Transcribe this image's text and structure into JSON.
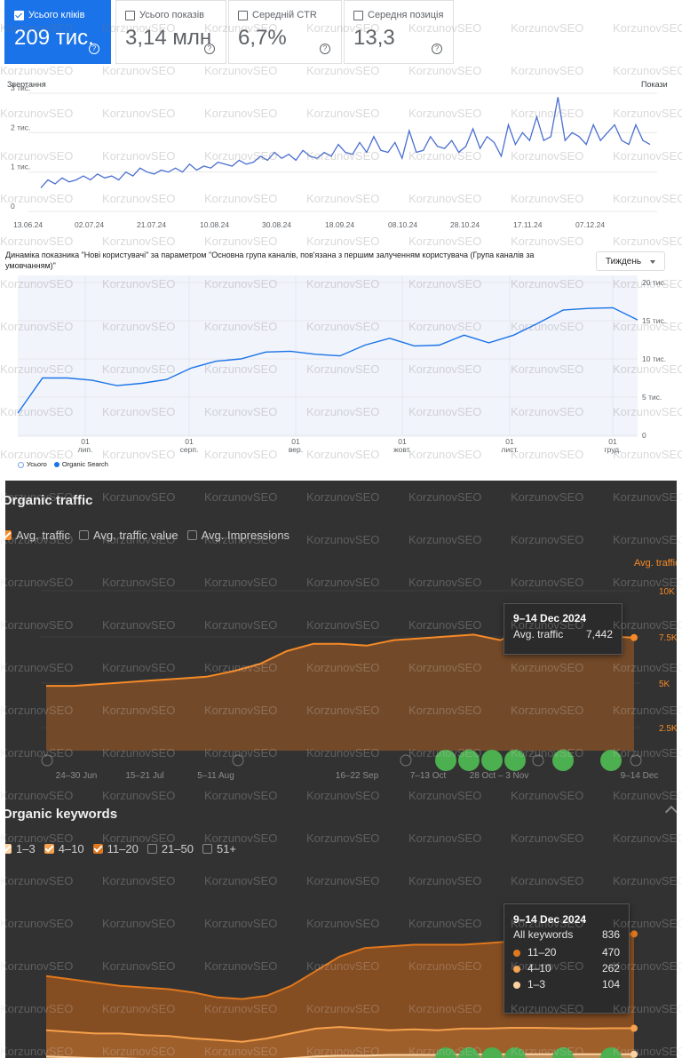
{
  "gsc": {
    "cards": [
      {
        "label": "Усього кліків",
        "value": "209 тис.",
        "active": true
      },
      {
        "label": "Усього показів",
        "value": "3,14 млн",
        "active": false
      },
      {
        "label": "Середній CTR",
        "value": "6,7%",
        "active": false
      },
      {
        "label": "Середня позиція",
        "value": "13,3",
        "active": false
      }
    ],
    "axis_left_label": "Звертання",
    "axis_right_label": "Покази",
    "colors": {
      "accent": "#1a73e8",
      "line": "#4a6fd1"
    }
  },
  "ga": {
    "title": "Динаміка показника \"Нові користувачі\" за параметром \"Основна група каналів, пов'язана з першим залученням користувача (Група каналів за умовчанням)\"",
    "period_select": "Тиждень",
    "legend": [
      {
        "label": "Усього",
        "color": "#a8c3f0"
      },
      {
        "label": "Organic Search",
        "color": "#1a73e8"
      }
    ]
  },
  "ahrefs": {
    "traffic": {
      "title": "Organic traffic",
      "options": [
        {
          "label": "Avg. traffic",
          "checked": true
        },
        {
          "label": "Avg. traffic value",
          "checked": false
        },
        {
          "label": "Avg. Impressions",
          "checked": false
        }
      ],
      "right_axis_label": "Avg. traffic",
      "tooltip": {
        "date": "9–14 Dec 2024",
        "label": "Avg. traffic",
        "value": "7,442"
      }
    },
    "keywords": {
      "title": "Organic keywords",
      "options": [
        {
          "label": "1–3",
          "checked": true
        },
        {
          "label": "4–10",
          "checked": true
        },
        {
          "label": "11–20",
          "checked": true
        },
        {
          "label": "21–50",
          "checked": false
        },
        {
          "label": "51+",
          "checked": false
        }
      ],
      "tooltip": {
        "date": "9–14 Dec 2024",
        "total_label": "All keywords",
        "total_value": "836",
        "rows": [
          {
            "label": "11–20",
            "value": "470",
            "color": "#e0781d"
          },
          {
            "label": "4–10",
            "value": "262",
            "color": "#f6a14c"
          },
          {
            "label": "1–3",
            "value": "104",
            "color": "#ffd2a0"
          }
        ]
      }
    },
    "colors": {
      "orange": "#f68a27",
      "bg": "#323232",
      "marker": "#4caf50"
    }
  },
  "watermark": "KorzunovSEO",
  "chart_data": [
    {
      "type": "line",
      "ylabel": "Звертання",
      "y2label": "Покази",
      "x_ticks": [
        "13.06.24",
        "02.07.24",
        "21.07.24",
        "10.08.24",
        "30.08.24",
        "18.09.24",
        "08.10.24",
        "28.10.24",
        "17.11.24",
        "07.12.24"
      ],
      "y_ticks": [
        "0",
        "1 тис.",
        "2 тис.",
        "3 тис."
      ],
      "ylim": [
        0,
        3000
      ],
      "series": [
        {
          "values": [
            600,
            800,
            700,
            850,
            750,
            800,
            900,
            800,
            950,
            850,
            900,
            800,
            1000,
            900,
            1100,
            1000,
            950,
            1050,
            1000,
            1100,
            1000,
            1200,
            1050,
            1150,
            1100,
            1250,
            1200,
            1150,
            1300,
            1200,
            1250,
            1400,
            1300,
            1500,
            1350,
            1450,
            1300,
            1550,
            1400,
            1350,
            1500,
            1400,
            1700,
            1500,
            1450,
            1750,
            1500,
            1900,
            1550,
            1500,
            1750,
            1350,
            2050,
            1500,
            1550,
            1900,
            1650,
            1600,
            1800,
            1500,
            1650,
            2100,
            1600,
            1900,
            1750,
            1400,
            2200,
            1700,
            2000,
            1800,
            2400,
            1800,
            1900,
            2900,
            1800,
            2000,
            1900,
            1700,
            2200,
            1800,
            2000,
            2200,
            1800,
            1700,
            2200,
            1800,
            1700
          ]
        }
      ]
    },
    {
      "type": "line",
      "x_ticks": [
        "01 лип.",
        "01 серп.",
        "01 вер.",
        "01 жовт.",
        "01 лист.",
        "01 груд."
      ],
      "y_ticks": [
        "0",
        "5 тис.",
        "10 тис.",
        "15 тис.",
        "20 тис."
      ],
      "ylim": [
        0,
        20000
      ],
      "series": [
        {
          "name": "Organic Search",
          "values": [
            2900,
            7500,
            7500,
            7200,
            6500,
            6800,
            7300,
            8800,
            9700,
            10000,
            10900,
            11000,
            10600,
            10400,
            11800,
            12700,
            11700,
            11800,
            13100,
            12100,
            13100,
            14700,
            16400,
            16600,
            16700,
            15100
          ]
        }
      ]
    },
    {
      "type": "area",
      "x_ticks": [
        "24–30 Jun",
        "15–21 Jul",
        "5–11 Aug",
        "16–22 Sep",
        "7–13 Oct",
        "28 Oct – 3 Nov",
        "9–14 Dec"
      ],
      "y_ticks": [
        "2.5K",
        "5K",
        "7.5K",
        "10K"
      ],
      "ylim": [
        0,
        10000
      ],
      "series": [
        {
          "name": "Avg. traffic",
          "values": [
            4800,
            4800,
            4900,
            5000,
            5100,
            5200,
            5300,
            5600,
            6000,
            6700,
            7100,
            7100,
            7000,
            7300,
            7400,
            7500,
            7600,
            7300,
            8000,
            7900,
            7800,
            7500,
            7442
          ]
        }
      ]
    },
    {
      "type": "area",
      "ylim": [
        0,
        1000
      ],
      "series": [
        {
          "name": "11–20",
          "values": [
            580,
            560,
            540,
            520,
            510,
            500,
            480,
            450,
            440,
            460,
            520,
            610,
            700,
            750,
            760,
            770,
            770,
            770,
            780,
            790,
            790,
            800,
            810,
            830,
            836
          ]
        },
        {
          "name": "4–10",
          "values": [
            250,
            240,
            230,
            230,
            220,
            215,
            200,
            190,
            180,
            200,
            230,
            260,
            270,
            260,
            250,
            255,
            250,
            260,
            260,
            265,
            265,
            262,
            260,
            262,
            262
          ]
        },
        {
          "name": "1–3",
          "values": [
            90,
            85,
            80,
            80,
            75,
            70,
            70,
            65,
            65,
            70,
            80,
            90,
            95,
            95,
            100,
            100,
            100,
            102,
            103,
            104,
            104,
            104,
            104,
            104,
            104
          ]
        }
      ]
    }
  ]
}
